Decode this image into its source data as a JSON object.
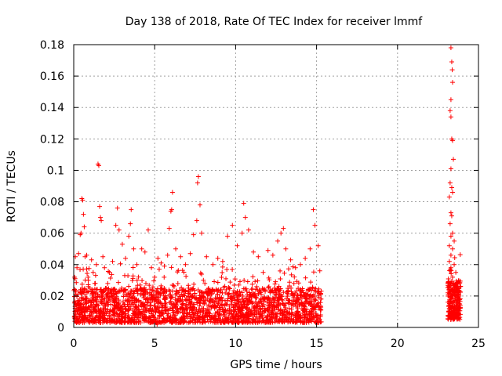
{
  "chart_data": {
    "type": "scatter",
    "title": "Day 138 of 2018, Rate Of TEC Index for receiver lmmf",
    "xlabel": "GPS time / hours",
    "ylabel": "ROTI / TECUs",
    "xlim": [
      0,
      25
    ],
    "ylim": [
      0,
      0.18
    ],
    "xticks": [
      0,
      5,
      10,
      15,
      20,
      25
    ],
    "yticks": [
      0,
      0.02,
      0.04,
      0.06,
      0.08,
      0.1,
      0.12,
      0.14,
      0.16,
      0.18
    ],
    "xtick_labels": [
      "0",
      "5",
      "10",
      "15",
      "20",
      "25"
    ],
    "ytick_labels": [
      "0",
      "0.02",
      "0.04",
      "0.06",
      "0.08",
      "0.1",
      "0.12",
      "0.14",
      "0.16",
      "0.18"
    ],
    "grid": true,
    "marker": "+",
    "color": "#ff0000",
    "series": [
      {
        "name": "ROTI",
        "points": [
          [
            0.05,
            0.032
          ],
          [
            0.1,
            0.045
          ],
          [
            0.2,
            0.038
          ],
          [
            0.3,
            0.047
          ],
          [
            0.4,
            0.059
          ],
          [
            0.45,
            0.06
          ],
          [
            0.5,
            0.082
          ],
          [
            0.55,
            0.081
          ],
          [
            0.6,
            0.072
          ],
          [
            0.65,
            0.064
          ],
          [
            0.7,
            0.045
          ],
          [
            0.8,
            0.046
          ],
          [
            0.9,
            0.03
          ],
          [
            1.0,
            0.025
          ],
          [
            1.1,
            0.043
          ],
          [
            1.2,
            0.035
          ],
          [
            1.3,
            0.028
          ],
          [
            1.4,
            0.04
          ],
          [
            1.5,
            0.104
          ],
          [
            1.55,
            0.103
          ],
          [
            1.6,
            0.077
          ],
          [
            1.65,
            0.07
          ],
          [
            1.7,
            0.068
          ],
          [
            1.8,
            0.045
          ],
          [
            1.9,
            0.038
          ],
          [
            2.0,
            0.025
          ],
          [
            2.2,
            0.035
          ],
          [
            2.4,
            0.042
          ],
          [
            2.6,
            0.065
          ],
          [
            2.7,
            0.076
          ],
          [
            2.8,
            0.062
          ],
          [
            3.0,
            0.053
          ],
          [
            3.2,
            0.044
          ],
          [
            3.4,
            0.058
          ],
          [
            3.5,
            0.066
          ],
          [
            3.55,
            0.075
          ],
          [
            3.7,
            0.05
          ],
          [
            3.9,
            0.04
          ],
          [
            4.2,
            0.05
          ],
          [
            4.4,
            0.048
          ],
          [
            4.6,
            0.062
          ],
          [
            4.8,
            0.038
          ],
          [
            5.0,
            0.032
          ],
          [
            5.2,
            0.044
          ],
          [
            5.4,
            0.041
          ],
          [
            5.6,
            0.039
          ],
          [
            5.8,
            0.046
          ],
          [
            5.9,
            0.063
          ],
          [
            6.0,
            0.074
          ],
          [
            6.05,
            0.075
          ],
          [
            6.1,
            0.086
          ],
          [
            6.3,
            0.05
          ],
          [
            6.6,
            0.045
          ],
          [
            6.9,
            0.04
          ],
          [
            7.2,
            0.047
          ],
          [
            7.4,
            0.059
          ],
          [
            7.6,
            0.068
          ],
          [
            7.65,
            0.092
          ],
          [
            7.7,
            0.096
          ],
          [
            7.8,
            0.078
          ],
          [
            7.9,
            0.06
          ],
          [
            8.2,
            0.045
          ],
          [
            8.6,
            0.04
          ],
          [
            8.9,
            0.044
          ],
          [
            9.2,
            0.042
          ],
          [
            9.5,
            0.058
          ],
          [
            9.8,
            0.065
          ],
          [
            10.1,
            0.052
          ],
          [
            10.4,
            0.06
          ],
          [
            10.5,
            0.079
          ],
          [
            10.6,
            0.07
          ],
          [
            10.8,
            0.062
          ],
          [
            11.1,
            0.048
          ],
          [
            11.4,
            0.045
          ],
          [
            11.7,
            0.035
          ],
          [
            12.0,
            0.049
          ],
          [
            12.3,
            0.046
          ],
          [
            12.6,
            0.055
          ],
          [
            12.8,
            0.06
          ],
          [
            12.95,
            0.063
          ],
          [
            13.1,
            0.05
          ],
          [
            13.4,
            0.043
          ],
          [
            13.7,
            0.038
          ],
          [
            14.0,
            0.04
          ],
          [
            14.3,
            0.044
          ],
          [
            14.6,
            0.05
          ],
          [
            14.8,
            0.075
          ],
          [
            14.9,
            0.065
          ],
          [
            15.1,
            0.052
          ],
          [
            15.2,
            0.036
          ],
          [
            0.3,
            0.012
          ],
          [
            0.7,
            0.018
          ],
          [
            1.2,
            0.01
          ],
          [
            1.8,
            0.015
          ],
          [
            2.3,
            0.02
          ],
          [
            2.9,
            0.011
          ],
          [
            3.3,
            0.017
          ],
          [
            3.8,
            0.009
          ],
          [
            4.3,
            0.014
          ],
          [
            4.9,
            0.019
          ],
          [
            5.3,
            0.007
          ],
          [
            5.7,
            0.013
          ],
          [
            6.4,
            0.016
          ],
          [
            6.8,
            0.011
          ],
          [
            7.3,
            0.02
          ],
          [
            7.9,
            0.012
          ],
          [
            8.4,
            0.017
          ],
          [
            8.9,
            0.01
          ],
          [
            9.4,
            0.015
          ],
          [
            9.9,
            0.019
          ],
          [
            10.3,
            0.011
          ],
          [
            10.9,
            0.016
          ],
          [
            11.5,
            0.009
          ],
          [
            12.1,
            0.014
          ],
          [
            12.7,
            0.018
          ],
          [
            13.3,
            0.012
          ],
          [
            13.8,
            0.017
          ],
          [
            14.4,
            0.01
          ],
          [
            15.0,
            0.014
          ],
          [
            0.9,
            0.026
          ],
          [
            2.1,
            0.028
          ],
          [
            3.1,
            0.024
          ],
          [
            4.1,
            0.027
          ],
          [
            6.2,
            0.026
          ],
          [
            7.1,
            0.025
          ],
          [
            8.1,
            0.028
          ],
          [
            9.1,
            0.024
          ],
          [
            10.2,
            0.027
          ],
          [
            11.3,
            0.026
          ],
          [
            12.4,
            0.025
          ],
          [
            13.6,
            0.028
          ],
          [
            14.5,
            0.024
          ],
          [
            5.1,
            0.003
          ],
          [
            5.15,
            0.002
          ],
          [
            1.3,
            0.005
          ],
          [
            13.0,
            0.006
          ],
          [
            23.3,
            0.178
          ],
          [
            23.35,
            0.169
          ],
          [
            23.38,
            0.164
          ],
          [
            23.4,
            0.156
          ],
          [
            23.3,
            0.145
          ],
          [
            23.25,
            0.138
          ],
          [
            23.3,
            0.134
          ],
          [
            23.35,
            0.12
          ],
          [
            23.4,
            0.119
          ],
          [
            23.45,
            0.107
          ],
          [
            23.3,
            0.101
          ],
          [
            23.25,
            0.092
          ],
          [
            23.35,
            0.089
          ],
          [
            23.4,
            0.086
          ],
          [
            23.2,
            0.083
          ],
          [
            23.3,
            0.073
          ],
          [
            23.35,
            0.071
          ],
          [
            23.25,
            0.066
          ],
          [
            23.4,
            0.06
          ],
          [
            23.3,
            0.058
          ],
          [
            23.5,
            0.055
          ],
          [
            23.2,
            0.052
          ],
          [
            23.4,
            0.05
          ],
          [
            23.3,
            0.046
          ],
          [
            23.2,
            0.042
          ],
          [
            23.5,
            0.04
          ],
          [
            23.3,
            0.038
          ],
          [
            23.6,
            0.035
          ],
          [
            23.4,
            0.032
          ],
          [
            23.7,
            0.028
          ],
          [
            23.2,
            0.025
          ],
          [
            23.5,
            0.022
          ],
          [
            23.6,
            0.02
          ],
          [
            23.3,
            0.018
          ],
          [
            23.7,
            0.015
          ],
          [
            23.4,
            0.012
          ],
          [
            23.5,
            0.009
          ],
          [
            23.3,
            0.006
          ],
          [
            23.6,
            0.008
          ],
          [
            23.8,
            0.012
          ],
          [
            23.2,
            0.014
          ],
          [
            23.8,
            0.02
          ],
          [
            23.5,
            0.016
          ],
          [
            23.4,
            0.024
          ]
        ],
        "dense_bands": [
          {
            "x_range": [
              0,
              15.3
            ],
            "y_range": [
              0.003,
              0.025
            ],
            "note": "dense continuous cluster"
          },
          {
            "x_range": [
              23.1,
              23.9
            ],
            "y_range": [
              0.005,
              0.03
            ],
            "note": "dense cluster"
          }
        ]
      }
    ]
  }
}
